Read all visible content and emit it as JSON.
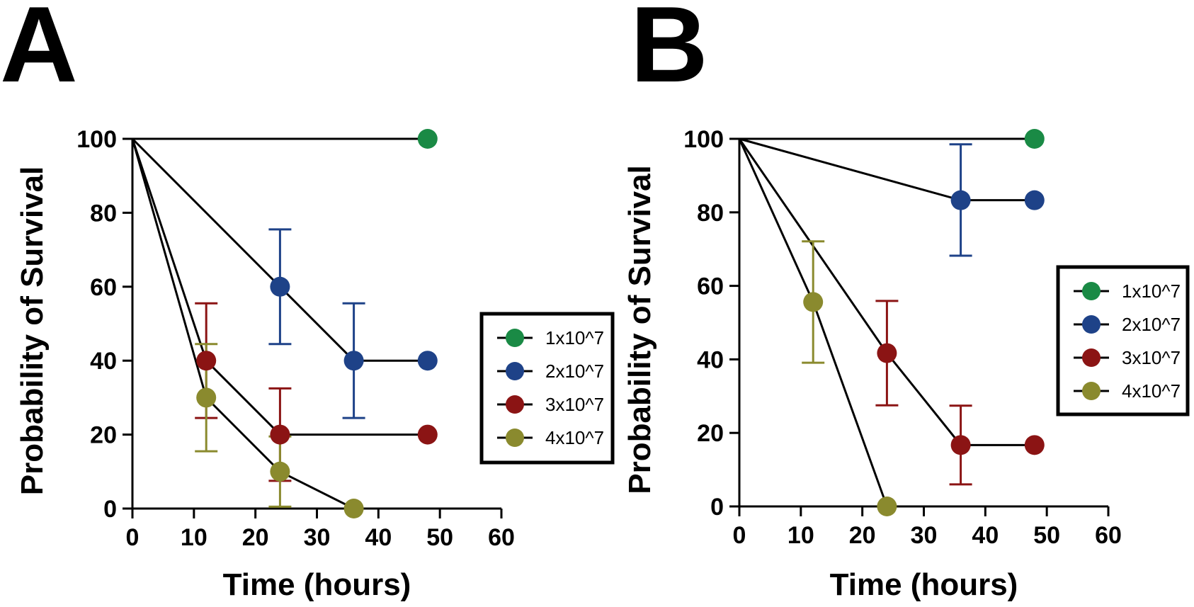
{
  "chart_data": [
    {
      "panel": "A",
      "type": "line",
      "title": "",
      "xlabel": "Time (hours)",
      "ylabel": "Probability of Survival",
      "xlim": [
        0,
        60
      ],
      "ylim": [
        0,
        100
      ],
      "xticks": [
        "0",
        "10",
        "20",
        "30",
        "40",
        "50",
        "60"
      ],
      "yticks": [
        "0",
        "20",
        "40",
        "60",
        "80",
        "100"
      ],
      "legend_position": "right",
      "series": [
        {
          "name": "1x10^7",
          "color": "#1a8a45",
          "x": [
            0,
            48
          ],
          "y": [
            100,
            100
          ],
          "markers": [
            48
          ],
          "error": []
        },
        {
          "name": "2x10^7",
          "color": "#1e4288",
          "x": [
            0,
            24,
            36,
            48
          ],
          "y": [
            100,
            60,
            40,
            40
          ],
          "markers": [
            24,
            36,
            48
          ],
          "error": [
            {
              "x": 24,
              "low": 44.5,
              "high": 75.5
            },
            {
              "x": 36,
              "low": 24.5,
              "high": 55.5
            }
          ]
        },
        {
          "name": "3x10^7",
          "color": "#8b1414",
          "x": [
            0,
            12,
            24,
            48
          ],
          "y": [
            100,
            40,
            20,
            20
          ],
          "markers": [
            12,
            24,
            48
          ],
          "error": [
            {
              "x": 12,
              "low": 24.5,
              "high": 55.5
            },
            {
              "x": 24,
              "low": 7.5,
              "high": 32.5
            }
          ]
        },
        {
          "name": "4x10^7",
          "color": "#8a8a2e",
          "x": [
            0,
            12,
            24,
            36
          ],
          "y": [
            100,
            30,
            10,
            0
          ],
          "markers": [
            12,
            24,
            36
          ],
          "error": [
            {
              "x": 12,
              "low": 15.5,
              "high": 44.5
            },
            {
              "x": 24,
              "low": 0.5,
              "high": 19.5
            }
          ]
        }
      ]
    },
    {
      "panel": "B",
      "type": "line",
      "title": "",
      "xlabel": "Time (hours)",
      "ylabel": "Probability of Survival",
      "xlim": [
        0,
        60
      ],
      "ylim": [
        0,
        100
      ],
      "xticks": [
        "0",
        "10",
        "20",
        "30",
        "40",
        "50",
        "60"
      ],
      "yticks": [
        "0",
        "20",
        "40",
        "60",
        "80",
        "100"
      ],
      "legend_position": "right",
      "series": [
        {
          "name": "1x10^7",
          "color": "#1a8a45",
          "x": [
            0,
            48
          ],
          "y": [
            100,
            100
          ],
          "markers": [
            48
          ],
          "error": []
        },
        {
          "name": "2x10^7",
          "color": "#1e4288",
          "x": [
            0,
            36,
            48
          ],
          "y": [
            100,
            83.3,
            83.3
          ],
          "markers": [
            36,
            48
          ],
          "error": [
            {
              "x": 36,
              "low": 68.2,
              "high": 98.5
            }
          ]
        },
        {
          "name": "3x10^7",
          "color": "#8b1414",
          "x": [
            0,
            24,
            36,
            48
          ],
          "y": [
            100,
            41.7,
            16.7,
            16.7
          ],
          "markers": [
            24,
            36,
            48
          ],
          "error": [
            {
              "x": 24,
              "low": 27.5,
              "high": 55.9
            },
            {
              "x": 36,
              "low": 6.0,
              "high": 27.4
            }
          ]
        },
        {
          "name": "4x10^7",
          "color": "#8a8a2e",
          "x": [
            0,
            12,
            24
          ],
          "y": [
            100,
            55.6,
            0
          ],
          "markers": [
            12,
            24
          ],
          "error": [
            {
              "x": 12,
              "low": 39.1,
              "high": 72.1
            }
          ]
        }
      ]
    }
  ]
}
